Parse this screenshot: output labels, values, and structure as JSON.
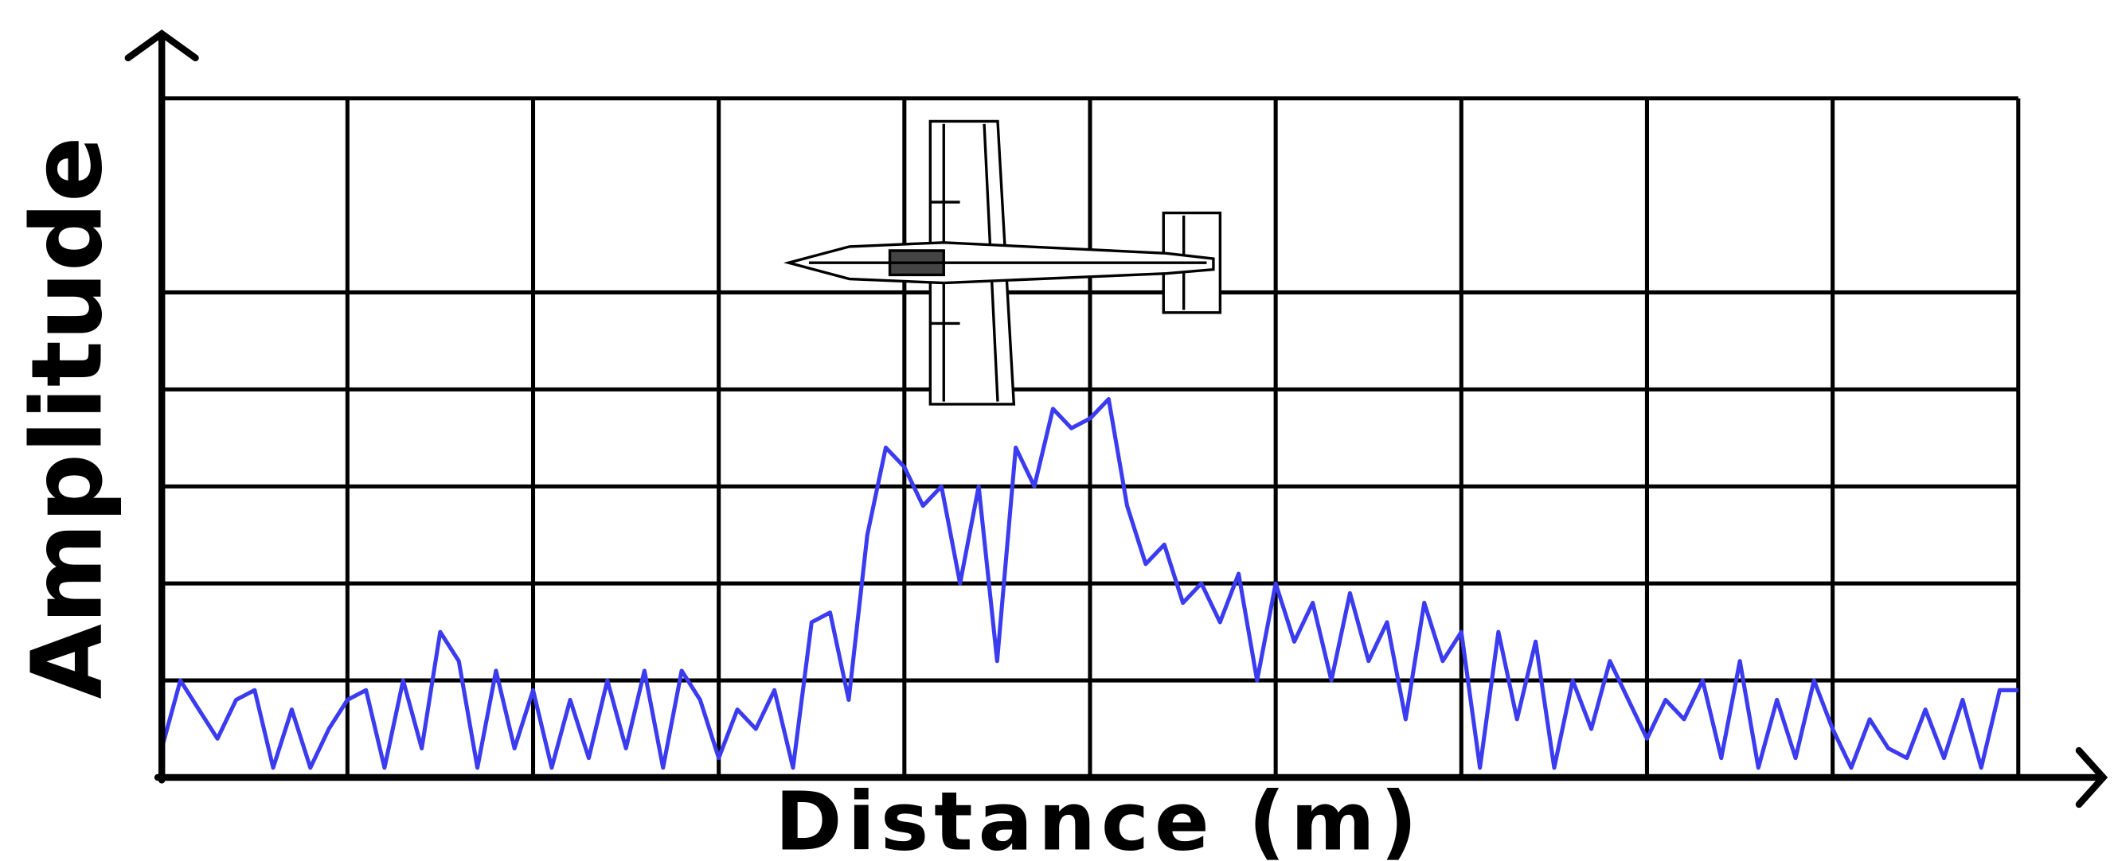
{
  "chart_data": {
    "type": "line",
    "xlabel": "Distance (m)",
    "ylabel": "Amplitude",
    "xlim": [
      0,
      10
    ],
    "ylim": [
      0,
      7
    ],
    "xticks": [
      1,
      2,
      3,
      4,
      5,
      6,
      7,
      8,
      9,
      10
    ],
    "yticks": [
      1,
      2,
      3,
      4,
      5,
      7
    ],
    "grid": true,
    "x": [
      0,
      0.1,
      0.2,
      0.3,
      0.4,
      0.5,
      0.6,
      0.7,
      0.8,
      0.9,
      1,
      1.1,
      1.2,
      1.3,
      1.4,
      1.5,
      1.6,
      1.7,
      1.8,
      1.9,
      2,
      2.1,
      2.2,
      2.3,
      2.4,
      2.5,
      2.6,
      2.7,
      2.8,
      2.9,
      3,
      3.1,
      3.2,
      3.3,
      3.4,
      3.5,
      3.6,
      3.7,
      3.8,
      3.9,
      4,
      4.1,
      4.2,
      4.3,
      4.4,
      4.5,
      4.6,
      4.7,
      4.8,
      4.9,
      5,
      5.1,
      5.2,
      5.3,
      5.4,
      5.5,
      5.6,
      5.7,
      5.8,
      5.9,
      6,
      6.1,
      6.2,
      6.3,
      6.4,
      6.5,
      6.6,
      6.7,
      6.8,
      6.9,
      7,
      7.1,
      7.2,
      7.3,
      7.4,
      7.5,
      7.6,
      7.7,
      7.8,
      7.9,
      8,
      8.1,
      8.2,
      8.3,
      8.4,
      8.5,
      8.6,
      8.7,
      8.8,
      8.9,
      9,
      9.1,
      9.2,
      9.3,
      9.4,
      9.5,
      9.6,
      9.7,
      9.8,
      9.9,
      10
    ],
    "series": [
      {
        "color": "#3b3bf0",
        "values": [
          0.3,
          1.0,
          0.7,
          0.4,
          0.8,
          0.9,
          0.1,
          0.7,
          0.1,
          0.5,
          0.8,
          0.9,
          0.1,
          1.0,
          0.3,
          1.5,
          1.2,
          0.1,
          1.1,
          0.3,
          0.9,
          0.1,
          0.8,
          0.2,
          1.0,
          0.3,
          1.1,
          0.1,
          1.1,
          0.8,
          0.2,
          0.7,
          0.5,
          0.9,
          0.1,
          1.6,
          1.7,
          0.8,
          2.5,
          3.4,
          3.2,
          2.8,
          3.0,
          2.0,
          3.0,
          1.2,
          3.4,
          3.0,
          3.8,
          3.6,
          3.7,
          3.9,
          2.8,
          2.2,
          2.4,
          1.8,
          2.0,
          1.6,
          2.1,
          1.0,
          2.0,
          1.4,
          1.8,
          1.0,
          1.9,
          1.2,
          1.6,
          0.6,
          1.8,
          1.2,
          1.5,
          0.1,
          1.5,
          0.6,
          1.4,
          0.1,
          1.0,
          0.5,
          1.2,
          0.8,
          0.4,
          0.8,
          0.6,
          1.0,
          0.2,
          1.2,
          0.1,
          0.8,
          0.2,
          1.0,
          0.5,
          0.1,
          0.6,
          0.3,
          0.2,
          0.7,
          0.2,
          0.8,
          0.1,
          0.9,
          0.9
        ]
      }
    ]
  }
}
